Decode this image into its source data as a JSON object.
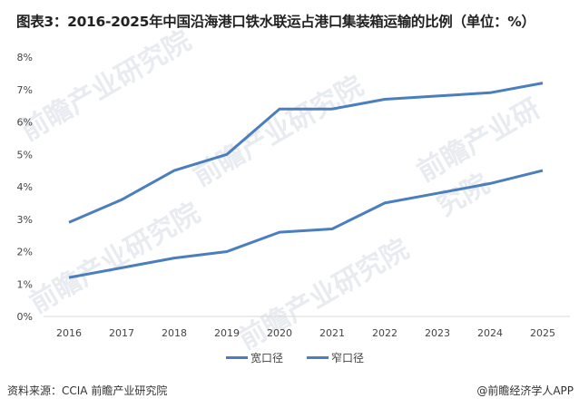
{
  "title": "图表3：2016-2025年中国沿海港口铁水联运占港口集装箱运输的比例（单位：%）",
  "source": "资料来源：CCIA  前瞻产业研究院",
  "credit": "@前瞻经济学人APP",
  "watermark": "前瞻产业研究院",
  "legend": [
    {
      "label": "宽口径",
      "color": "#4a7ebf"
    },
    {
      "label": "窄口径",
      "color": "#4a7ebf"
    }
  ],
  "chart_data": {
    "type": "line",
    "title": "图表3：2016-2025年中国沿海港口铁水联运占港口集装箱运输的比例（单位：%）",
    "xlabel": "",
    "ylabel": "",
    "categories": [
      "2016",
      "2017",
      "2018",
      "2019",
      "2020",
      "2021",
      "2022",
      "2023",
      "2024",
      "2025"
    ],
    "series": [
      {
        "name": "宽口径",
        "values": [
          2.9,
          3.6,
          4.5,
          5.0,
          6.4,
          6.4,
          6.7,
          6.8,
          6.9,
          7.2
        ],
        "color": "#4a7ebf"
      },
      {
        "name": "窄口径",
        "values": [
          1.2,
          1.5,
          1.8,
          2.0,
          2.6,
          2.7,
          3.5,
          3.8,
          4.1,
          4.5
        ],
        "color": "#4a7ebf"
      }
    ],
    "yticks": [
      "0%",
      "1%",
      "2%",
      "3%",
      "4%",
      "5%",
      "6%",
      "7%",
      "8%"
    ],
    "ylim": [
      0,
      8
    ],
    "grid": false,
    "legend_position": "bottom"
  }
}
